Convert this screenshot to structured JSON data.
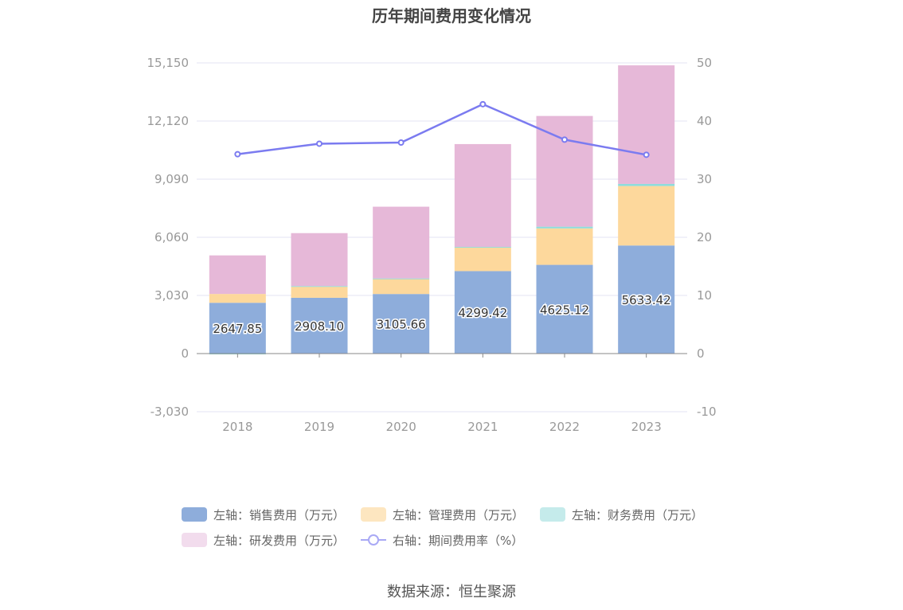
{
  "chart_data": {
    "type": "bar",
    "title": "历年期间费用变化情况",
    "categories": [
      "2018",
      "2019",
      "2020",
      "2021",
      "2022",
      "2023"
    ],
    "stacked": true,
    "series": [
      {
        "name": "左轴：销售费用（万元）",
        "axis": "left",
        "color": "#8eaddb",
        "values": [
          2647.85,
          2908.1,
          3105.66,
          4299.42,
          4625.12,
          5633.42
        ],
        "labels": [
          "2647.85",
          "2908.10",
          "3105.66",
          "4299.42",
          "4625.12",
          "5633.42"
        ]
      },
      {
        "name": "左轴：管理费用（万元）",
        "axis": "left",
        "color": "#fdd89c",
        "values": [
          460,
          590,
          780,
          1240,
          1900,
          3100
        ]
      },
      {
        "name": "左轴：财务费用（万元）",
        "axis": "left",
        "color": "#8fdcdc",
        "values": [
          -40,
          20,
          30,
          20,
          90,
          110
        ]
      },
      {
        "name": "左轴：研发费用（万元）",
        "axis": "left",
        "color": "#e6b8d8",
        "values": [
          2010,
          2760,
          3740,
          5360,
          5770,
          6180
        ]
      },
      {
        "name": "右轴：期间费用率（%）",
        "axis": "right",
        "type": "line",
        "color": "#7b7bf0",
        "values": [
          34.3,
          36.1,
          36.3,
          42.9,
          36.8,
          34.2
        ]
      }
    ],
    "left_axis": {
      "ticks": [
        "15,150",
        "12,120",
        "9,090",
        "6,060",
        "3,030",
        "0",
        "-3,030"
      ],
      "range": [
        -3030,
        15150
      ]
    },
    "right_axis": {
      "ticks": [
        "50",
        "40",
        "30",
        "20",
        "10",
        "0",
        "-10"
      ],
      "range": [
        -10,
        50
      ]
    }
  },
  "legend": {
    "items": [
      {
        "label": "左轴：销售费用（万元）",
        "color": "#8eaddb"
      },
      {
        "label": "左轴：管理费用（万元）",
        "color": "#fde6c0"
      },
      {
        "label": "左轴：财务费用（万元）",
        "color": "#c5ebeb"
      },
      {
        "label": "左轴：研发费用（万元）",
        "color": "#f2dced"
      },
      {
        "label": "右轴：期间费用率（%）",
        "color": "#a9a9f5"
      }
    ]
  },
  "source": "数据来源：恒生聚源"
}
